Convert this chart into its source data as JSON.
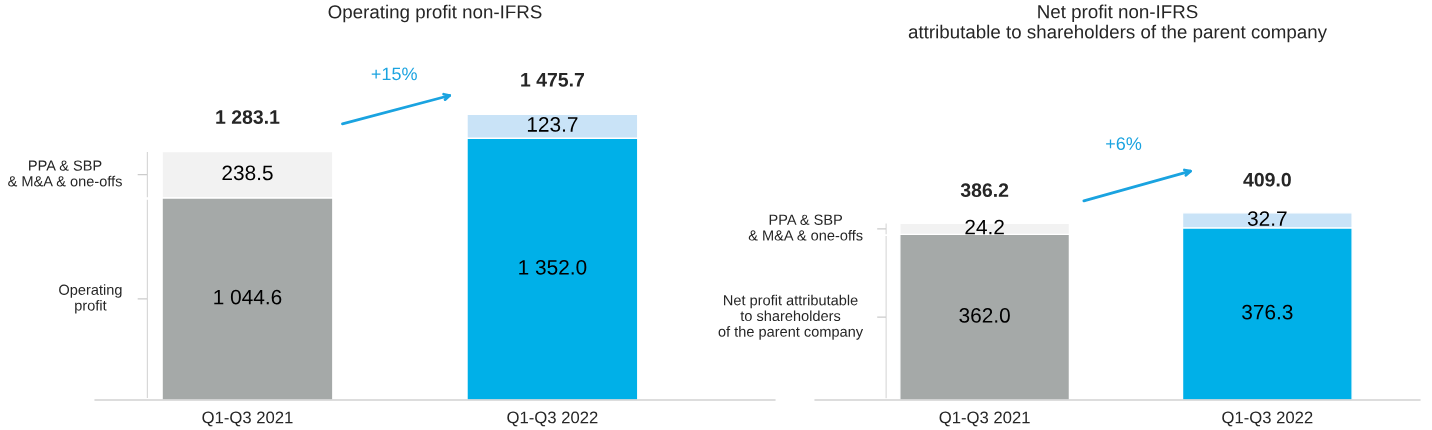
{
  "chart_data": [
    {
      "type": "bar",
      "title": "Operating profit non-IFRS",
      "categories": [
        "Q1-Q3 2021",
        "Q1-Q3 2022"
      ],
      "stacked": true,
      "tick_labels": "x",
      "series": [
        {
          "name": "Operating\nprofit",
          "colors": [
            "#a5a9a8",
            "#00b0e8"
          ],
          "values": [
            1044.6,
            1352.0
          ],
          "value_labels": [
            "1 044.6",
            "1 352.0"
          ]
        },
        {
          "name": "PPA & SBP\n& M&A & one-offs",
          "colors": [
            "#f2f2f2",
            "#c9e3f7"
          ],
          "values": [
            238.5,
            123.7
          ],
          "value_labels": [
            "238.5",
            "123.7"
          ]
        }
      ],
      "totals": [
        "1 283.1",
        "1 475.7"
      ],
      "annotations": [
        "+15%"
      ]
    },
    {
      "type": "bar",
      "title": "Net profit non-IFRS\nattributable to shareholders of the parent company",
      "categories": [
        "Q1-Q3 2021",
        "Q1-Q3 2022"
      ],
      "stacked": true,
      "tick_labels": "x",
      "series": [
        {
          "name": "Net profit attributable\nto shareholders\nof the parent company",
          "colors": [
            "#a5a9a8",
            "#00b0e8"
          ],
          "values": [
            362.0,
            376.3
          ],
          "value_labels": [
            "362.0",
            "376.3"
          ]
        },
        {
          "name": "PPA & SBP\n& M&A & one-offs",
          "colors": [
            "#f2f2f2",
            "#c9e3f7"
          ],
          "values": [
            24.2,
            32.7
          ],
          "value_labels": [
            "24.2",
            "32.7"
          ]
        }
      ],
      "totals": [
        "386.2",
        "409.0"
      ],
      "annotations": [
        "+6%"
      ]
    }
  ]
}
